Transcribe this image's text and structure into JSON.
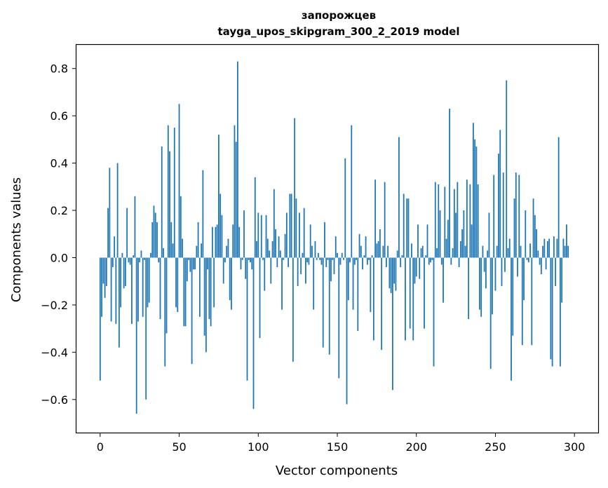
{
  "chart_data": {
    "type": "bar",
    "title_line1": "запорожцев",
    "title_line2": "tayga_upos_skipgram_300_2_2019 model",
    "xlabel": "Vector components",
    "ylabel": "Components values",
    "xlim": [
      -15,
      315
    ],
    "ylim": [
      -0.74,
      0.9
    ],
    "xticks": [
      0,
      50,
      100,
      150,
      200,
      250,
      300
    ],
    "yticks": [
      -0.6,
      -0.4,
      -0.2,
      0.0,
      0.2,
      0.4,
      0.6,
      0.8
    ],
    "ytick_labels": [
      "−0.6",
      "−0.4",
      "−0.2",
      "0.0",
      "0.2",
      "0.4",
      "0.6",
      "0.8"
    ],
    "bar_color": "#1f77b4",
    "grid": false,
    "values": [
      -0.52,
      -0.25,
      -0.11,
      -0.17,
      -0.12,
      0.21,
      0.38,
      -0.27,
      -0.04,
      0.09,
      -0.28,
      0.4,
      -0.38,
      -0.21,
      0.02,
      -0.13,
      -0.12,
      0.21,
      -0.02,
      -0.03,
      -0.28,
      0.01,
      0.26,
      -0.66,
      -0.27,
      -0.02,
      0.03,
      -0.25,
      -0.01,
      -0.6,
      -0.21,
      -0.19,
      0.02,
      0.15,
      0.22,
      0.19,
      0.15,
      -0.02,
      -0.26,
      0.47,
      0.04,
      -0.46,
      -0.32,
      0.56,
      0.45,
      0.15,
      0.06,
      0.55,
      -0.21,
      -0.23,
      0.65,
      0.26,
      0.08,
      -0.29,
      -0.29,
      -0.1,
      -0.01,
      -0.06,
      -0.45,
      -0.05,
      -0.05,
      0.05,
      0.15,
      -0.25,
      0.06,
      0.37,
      -0.33,
      -0.4,
      -0.05,
      -0.26,
      -0.29,
      0.13,
      -0.21,
      0.13,
      0.14,
      0.52,
      0.27,
      0.18,
      -0.11,
      -0.02,
      0.05,
      0.08,
      -0.18,
      -0.22,
      0.14,
      0.56,
      0.49,
      0.83,
      0.13,
      -0.05,
      -0.01,
      0.2,
      -0.09,
      -0.52,
      -0.01,
      -0.02,
      -0.05,
      -0.64,
      0.34,
      0.07,
      0.19,
      -0.34,
      0.18,
      -0.01,
      -0.14,
      0.18,
      0.08,
      0.03,
      -0.11,
      0.07,
      0.29,
      0.12,
      -0.04,
      0.09,
      0.03,
      -0.22,
      -0.01,
      0.1,
      0.19,
      -0.04,
      0.27,
      0.27,
      -0.44,
      0.59,
      0.25,
      -0.12,
      0.19,
      -0.07,
      0.02,
      0.21,
      -0.11,
      -0.02,
      -0.03,
      0.14,
      0.05,
      -0.22,
      0.07,
      -0.01,
      0.02,
      -0.01,
      -0.03,
      -0.38,
      0.15,
      -0.04,
      -0.01,
      -0.41,
      -0.1,
      -0.01,
      -0.07,
      0.09,
      0.02,
      -0.51,
      -0.03,
      0.02,
      -0.01,
      0.42,
      -0.62,
      -0.18,
      -0.02,
      0.56,
      -0.22,
      -0.03,
      -0.01,
      -0.31,
      0.1,
      0.05,
      -0.05,
      0.01,
      0.09,
      -0.03,
      -0.01,
      -0.23,
      0.01,
      -0.35,
      0.33,
      0.06,
      0.07,
      0.12,
      -0.39,
      0.05,
      0.32,
      -0.04,
      0.05,
      -0.13,
      -0.15,
      -0.56,
      -0.11,
      -0.14,
      0.03,
      0.51,
      -0.04,
      0.01,
      0.27,
      -0.35,
      0.25,
      0.25,
      -0.3,
      0.06,
      -0.35,
      -0.11,
      -0.08,
      0.14,
      -0.09,
      0.04,
      0.05,
      -0.3,
      0.01,
      0.14,
      -0.03,
      -0.02,
      -0.01,
      -0.46,
      0.32,
      0.04,
      0.31,
      0.2,
      -0.03,
      -0.19,
      0.3,
      0.08,
      0.16,
      0.63,
      -0.03,
      0.04,
      0.29,
      0.19,
      0.32,
      -0.04,
      0.07,
      0.12,
      0.2,
      0.05,
      0.33,
      -0.26,
      0.31,
      0.14,
      0.57,
      0.5,
      0.47,
      0.31,
      -0.22,
      -0.25,
      0.05,
      -0.06,
      -0.13,
      0.03,
      0.19,
      -0.47,
      -0.24,
      0.35,
      -0.14,
      0.05,
      0.44,
      0.54,
      -0.12,
      0.36,
      -0.06,
      0.75,
      0.04,
      0.08,
      -0.52,
      -0.33,
      0.25,
      0.36,
      -0.08,
      0.35,
      0.05,
      -0.37,
      -0.18,
      0.2,
      -0.01,
      -0.02,
      0.06,
      -0.37,
      0.25,
      0.18,
      0.12,
      0.03,
      -0.03,
      -0.07,
      0.05,
      0.08,
      -0.05,
      0.07,
      0.08,
      -0.43,
      -0.46,
      0.09,
      -0.12,
      0.08,
      0.51,
      -0.46,
      -0.19,
      0.08,
      0.05,
      0.14,
      0.05
    ]
  }
}
